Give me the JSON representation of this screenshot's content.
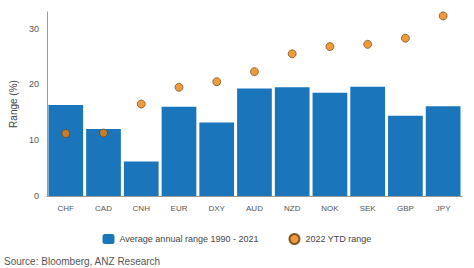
{
  "chart_data": {
    "type": "bar",
    "ylabel": "Range (%)",
    "annotations": [
      "Source: Bloomberg, ANZ Research"
    ],
    "categories": [
      "CHF",
      "CAD",
      "CNH",
      "EUR",
      "DXY",
      "AUD",
      "NZD",
      "NOK",
      "SEK",
      "GBP",
      "JPY"
    ],
    "series": [
      {
        "name": "Average annual range 1990 - 2021",
        "type": "bar",
        "color": "#1b75bb",
        "values": [
          16.3,
          12.0,
          6.2,
          16.0,
          13.2,
          19.3,
          19.5,
          18.5,
          19.6,
          14.4,
          16.1
        ]
      },
      {
        "name": "2022 YTD range",
        "type": "scatter",
        "color": "#e8820c",
        "marker": "circle",
        "values": [
          11.2,
          11.3,
          16.5,
          19.5,
          20.5,
          22.3,
          25.5,
          26.8,
          27.2,
          28.3,
          32.3
        ]
      }
    ],
    "ylim": [
      0,
      33
    ],
    "yticks": [
      0,
      10,
      20,
      30
    ],
    "grid": false,
    "legend": "bottom"
  }
}
